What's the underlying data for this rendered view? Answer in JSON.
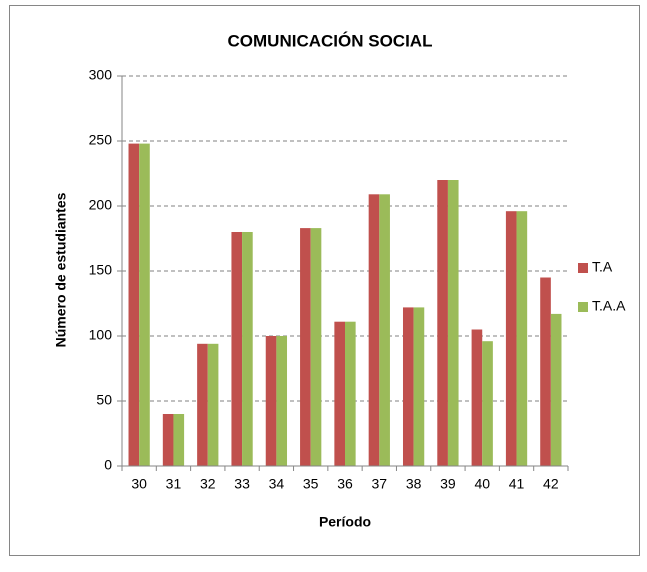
{
  "chart_data": {
    "type": "bar",
    "title": "COMUNICACIÓN SOCIAL",
    "x_label": "Período",
    "y_label": "Número de estudiantes",
    "categories": [
      "30",
      "31",
      "32",
      "33",
      "34",
      "35",
      "36",
      "37",
      "38",
      "39",
      "40",
      "41",
      "42"
    ],
    "series": [
      {
        "name": "T.A",
        "color": "#c0504d",
        "values": [
          248,
          40,
          94,
          180,
          100,
          183,
          111,
          209,
          122,
          220,
          105,
          196,
          145
        ]
      },
      {
        "name": "T.A.A",
        "color": "#9bbb59",
        "values": [
          248,
          40,
          94,
          180,
          100,
          183,
          111,
          209,
          122,
          220,
          96,
          196,
          117
        ]
      }
    ],
    "ylim": [
      0,
      300
    ],
    "yticks": [
      0,
      50,
      100,
      150,
      200,
      250,
      300
    ],
    "grid": true,
    "legend": "right"
  }
}
